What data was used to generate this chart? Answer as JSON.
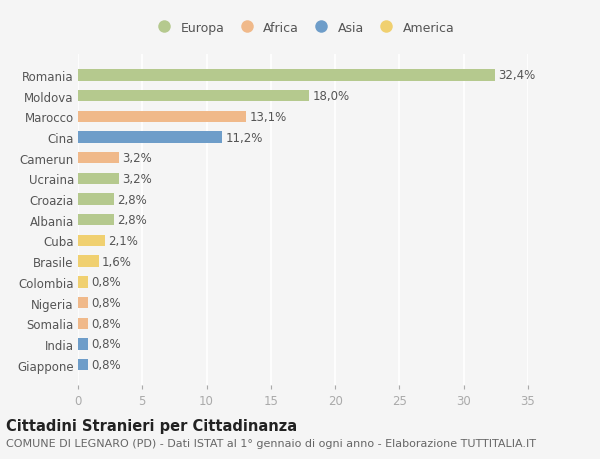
{
  "countries": [
    "Romania",
    "Moldova",
    "Marocco",
    "Cina",
    "Camerun",
    "Ucraina",
    "Croazia",
    "Albania",
    "Cuba",
    "Brasile",
    "Colombia",
    "Nigeria",
    "Somalia",
    "India",
    "Giappone"
  ],
  "values": [
    32.4,
    18.0,
    13.1,
    11.2,
    3.2,
    3.2,
    2.8,
    2.8,
    2.1,
    1.6,
    0.8,
    0.8,
    0.8,
    0.8,
    0.8
  ],
  "labels": [
    "32,4%",
    "18,0%",
    "13,1%",
    "11,2%",
    "3,2%",
    "3,2%",
    "2,8%",
    "2,8%",
    "2,1%",
    "1,6%",
    "0,8%",
    "0,8%",
    "0,8%",
    "0,8%",
    "0,8%"
  ],
  "colors": [
    "#b5c98e",
    "#b5c98e",
    "#f0b98a",
    "#6e9dc9",
    "#f0b98a",
    "#b5c98e",
    "#b5c98e",
    "#b5c98e",
    "#f0d070",
    "#f0d070",
    "#f0d070",
    "#f0b98a",
    "#f0b98a",
    "#6e9dc9",
    "#6e9dc9"
  ],
  "legend_labels": [
    "Europa",
    "Africa",
    "Asia",
    "America"
  ],
  "legend_colors": [
    "#b5c98e",
    "#f0b98a",
    "#6e9dc9",
    "#f0d070"
  ],
  "title": "Cittadini Stranieri per Cittadinanza",
  "subtitle": "COMUNE DI LEGNARO (PD) - Dati ISTAT al 1° gennaio di ogni anno - Elaborazione TUTTITALIA.IT",
  "xlim": [
    0,
    35
  ],
  "xticks": [
    0,
    5,
    10,
    15,
    20,
    25,
    30,
    35
  ],
  "background_color": "#f5f5f5",
  "plot_bg_color": "#f5f5f5",
  "grid_color": "#ffffff",
  "bar_height": 0.55,
  "label_fontsize": 8.5,
  "tick_fontsize": 8.5,
  "title_fontsize": 10.5,
  "subtitle_fontsize": 8
}
